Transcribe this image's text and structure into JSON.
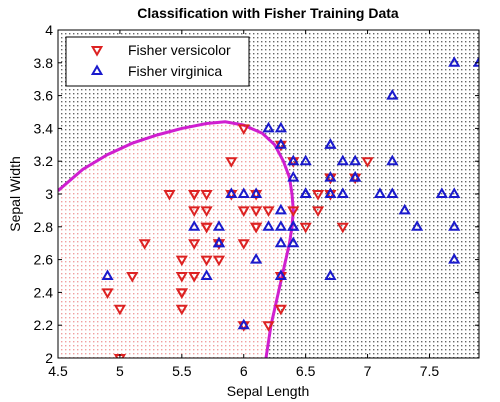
{
  "chart_data": {
    "type": "scatter",
    "title": "Classification with Fisher Training Data",
    "xlabel": "Sepal Length",
    "ylabel": "Sepal Width",
    "xlim": [
      4.5,
      7.9
    ],
    "ylim": [
      2,
      4
    ],
    "xticks": [
      4.5,
      5,
      5.5,
      6,
      6.5,
      7,
      7.5
    ],
    "xtick_labels": [
      "4.5",
      "5",
      "5.5",
      "6",
      "6.5",
      "7",
      "7.5"
    ],
    "yticks": [
      2,
      2.2,
      2.4,
      2.6,
      2.8,
      3,
      3.2,
      3.4,
      3.6,
      3.8,
      4
    ],
    "ytick_labels": [
      "2",
      "2.2",
      "2.4",
      "2.6",
      "2.8",
      "3",
      "3.2",
      "3.4",
      "3.6",
      "3.8",
      "4"
    ],
    "grid": false,
    "legend_position": "top-left",
    "regions": [
      {
        "inside_boundary": "versicolor",
        "fill": "#f4c2c2",
        "style": "dotted"
      },
      {
        "inside_boundary": "virginica",
        "fill": "#555555",
        "style": "dotted"
      }
    ],
    "decision_boundary": {
      "color": "#d01fd0",
      "points": [
        [
          4.5,
          3.02
        ],
        [
          4.7,
          3.15
        ],
        [
          4.9,
          3.24
        ],
        [
          5.1,
          3.31
        ],
        [
          5.3,
          3.36
        ],
        [
          5.5,
          3.4
        ],
        [
          5.7,
          3.43
        ],
        [
          5.85,
          3.44
        ],
        [
          6.0,
          3.42
        ],
        [
          6.15,
          3.37
        ],
        [
          6.25,
          3.3
        ],
        [
          6.32,
          3.2
        ],
        [
          6.37,
          3.1
        ],
        [
          6.39,
          3.0
        ],
        [
          6.4,
          2.9
        ],
        [
          6.39,
          2.8
        ],
        [
          6.37,
          2.7
        ],
        [
          6.34,
          2.6
        ],
        [
          6.31,
          2.5
        ],
        [
          6.28,
          2.4
        ],
        [
          6.25,
          2.3
        ],
        [
          6.22,
          2.2
        ],
        [
          6.2,
          2.1
        ],
        [
          6.18,
          2.0
        ]
      ]
    },
    "series": [
      {
        "name": "Fisher versicolor",
        "marker": "triangle-down",
        "color": "#dd2222",
        "points": [
          [
            7.0,
            3.2
          ],
          [
            6.4,
            3.2
          ],
          [
            6.9,
            3.1
          ],
          [
            5.5,
            2.3
          ],
          [
            6.5,
            2.8
          ],
          [
            5.7,
            2.8
          ],
          [
            6.3,
            3.3
          ],
          [
            4.9,
            2.4
          ],
          [
            6.6,
            2.9
          ],
          [
            5.2,
            2.7
          ],
          [
            5.0,
            2.0
          ],
          [
            5.9,
            3.0
          ],
          [
            6.0,
            2.2
          ],
          [
            6.1,
            2.9
          ],
          [
            5.6,
            2.9
          ],
          [
            6.7,
            3.1
          ],
          [
            5.6,
            3.0
          ],
          [
            5.8,
            2.7
          ],
          [
            6.2,
            2.2
          ],
          [
            5.6,
            2.5
          ],
          [
            5.9,
            3.2
          ],
          [
            6.1,
            2.8
          ],
          [
            6.3,
            2.5
          ],
          [
            6.1,
            2.8
          ],
          [
            6.4,
            2.9
          ],
          [
            6.6,
            3.0
          ],
          [
            6.8,
            2.8
          ],
          [
            6.7,
            3.0
          ],
          [
            6.0,
            2.9
          ],
          [
            5.7,
            2.6
          ],
          [
            5.5,
            2.4
          ],
          [
            5.5,
            2.4
          ],
          [
            5.8,
            2.7
          ],
          [
            6.0,
            2.7
          ],
          [
            5.4,
            3.0
          ],
          [
            6.0,
            3.4
          ],
          [
            6.7,
            3.1
          ],
          [
            6.3,
            2.3
          ],
          [
            5.6,
            3.0
          ],
          [
            5.5,
            2.5
          ],
          [
            5.5,
            2.6
          ],
          [
            6.1,
            3.0
          ],
          [
            5.8,
            2.6
          ],
          [
            5.0,
            2.3
          ],
          [
            5.6,
            2.7
          ],
          [
            5.7,
            3.0
          ],
          [
            5.7,
            2.9
          ],
          [
            6.2,
            2.9
          ],
          [
            5.1,
            2.5
          ],
          [
            5.7,
            2.8
          ]
        ]
      },
      {
        "name": "Fisher virginica",
        "marker": "triangle-up",
        "color": "#1a1acc",
        "points": [
          [
            6.3,
            3.3
          ],
          [
            5.8,
            2.7
          ],
          [
            7.1,
            3.0
          ],
          [
            6.3,
            2.9
          ],
          [
            6.5,
            3.0
          ],
          [
            7.6,
            3.0
          ],
          [
            4.9,
            2.5
          ],
          [
            7.3,
            2.9
          ],
          [
            6.7,
            2.5
          ],
          [
            7.2,
            3.6
          ],
          [
            6.5,
            3.2
          ],
          [
            6.4,
            2.7
          ],
          [
            6.8,
            3.0
          ],
          [
            5.7,
            2.5
          ],
          [
            5.8,
            2.8
          ],
          [
            6.4,
            3.2
          ],
          [
            6.5,
            3.0
          ],
          [
            7.7,
            3.8
          ],
          [
            7.7,
            2.6
          ],
          [
            6.0,
            2.2
          ],
          [
            6.9,
            3.2
          ],
          [
            5.6,
            2.8
          ],
          [
            7.7,
            2.8
          ],
          [
            6.3,
            2.7
          ],
          [
            6.7,
            3.3
          ],
          [
            7.2,
            3.2
          ],
          [
            6.2,
            2.8
          ],
          [
            6.1,
            3.0
          ],
          [
            6.4,
            2.8
          ],
          [
            7.2,
            3.0
          ],
          [
            7.4,
            2.8
          ],
          [
            7.9,
            3.8
          ],
          [
            6.4,
            2.8
          ],
          [
            6.3,
            2.8
          ],
          [
            6.1,
            2.6
          ],
          [
            7.7,
            3.0
          ],
          [
            6.3,
            3.4
          ],
          [
            6.4,
            3.1
          ],
          [
            6.0,
            3.0
          ],
          [
            6.9,
            3.1
          ],
          [
            6.7,
            3.1
          ],
          [
            6.9,
            3.1
          ],
          [
            5.8,
            2.7
          ],
          [
            6.8,
            3.2
          ],
          [
            6.7,
            3.3
          ],
          [
            6.7,
            3.0
          ],
          [
            6.3,
            2.5
          ],
          [
            6.5,
            3.0
          ],
          [
            6.2,
            3.4
          ],
          [
            5.9,
            3.0
          ]
        ]
      }
    ]
  }
}
